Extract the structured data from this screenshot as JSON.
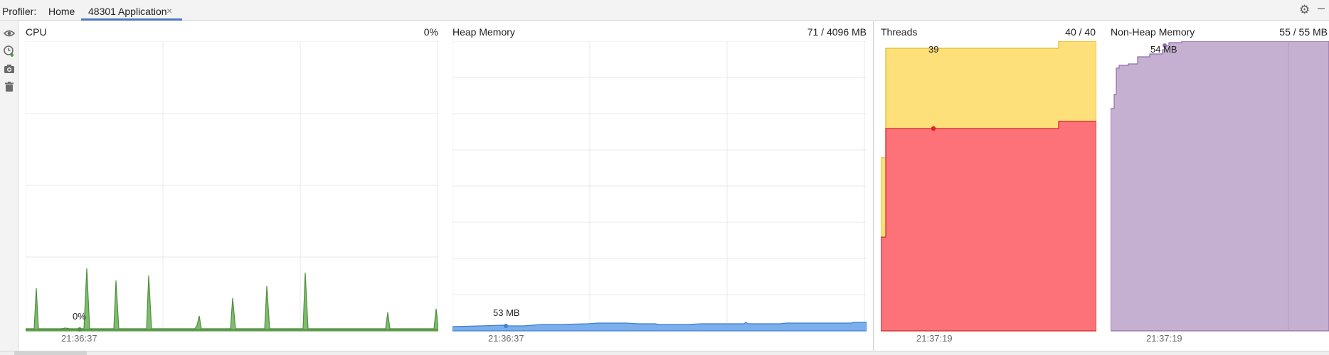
{
  "header": {
    "profiler_label": "Profiler:",
    "tabs": [
      {
        "label": "Home",
        "active": false
      },
      {
        "label": "48301 Application",
        "active": true,
        "closable": true
      }
    ],
    "close_glyph": "×",
    "settings_icon": "gear-icon",
    "minimize_icon": "minimize-icon"
  },
  "toolbar": {
    "icons": [
      "eye-icon",
      "clock-add-icon",
      "camera-icon",
      "trash-icon"
    ]
  },
  "panels": {
    "cpu": {
      "title": "CPU",
      "value": "0%",
      "hover_value": "0%",
      "time": "21:36:37",
      "color": "#5c9a49",
      "fill": "#7fbd6e"
    },
    "heap": {
      "title": "Heap Memory",
      "value": "71 / 4096 MB",
      "hover_value": "53 MB",
      "time": "21:36:37",
      "color": "#4a86d4",
      "fill": "#7aaeec"
    },
    "threads": {
      "title": "Threads",
      "value": "40 / 40",
      "hover_value": "39",
      "time": "21:37:19",
      "colors": {
        "total": "#fee07a",
        "total_line": "#e0b82a",
        "live": "#fd7278",
        "live_line": "#d4242c",
        "marker": "#e02020"
      }
    },
    "nonheap": {
      "title": "Non-Heap Memory",
      "value": "55 / 55 MB",
      "hover_value": "54 MB",
      "time": "21:37:19",
      "color": "#8f6fa7",
      "fill": "#c5b0d2"
    }
  }
}
